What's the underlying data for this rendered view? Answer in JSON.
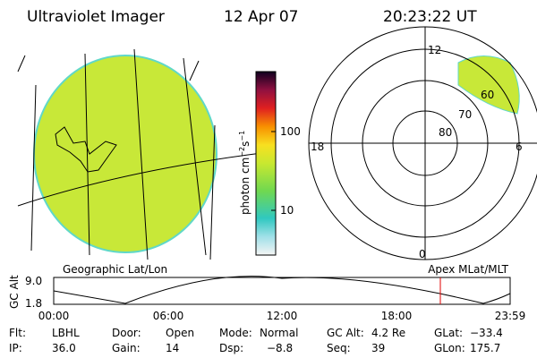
{
  "header": {
    "title": "Ultraviolet Imager",
    "date": "12 Apr 07",
    "time": "20:23:22 UT"
  },
  "colorbar": {
    "label": [
      "photon cm",
      "−2",
      "s",
      "−1"
    ],
    "ticks": [
      "100",
      "10"
    ]
  },
  "polar": {
    "mlt_labels": [
      "12",
      "18",
      "6",
      "0"
    ],
    "lat_labels": [
      "80",
      "70",
      "60"
    ]
  },
  "timeline": {
    "left_title": "Geographic Lat/Lon",
    "right_title": "Apex MLat/MLT",
    "axis_label": "GC Alt",
    "y_labels": [
      "9.0",
      "1.8"
    ],
    "x_labels": [
      "00:00",
      "06:00",
      "12:00",
      "18:00",
      "23:59"
    ]
  },
  "info": [
    [
      "Flt:",
      "LBHL"
    ],
    [
      "Door:",
      "Open"
    ],
    [
      "Mode:",
      "Normal"
    ],
    [
      "GC Alt:",
      "4.2 Re"
    ],
    [
      "GLat:",
      "−33.4"
    ],
    [
      "IP:",
      "36.0"
    ],
    [
      "Gain:",
      "14"
    ],
    [
      "Dsp:",
      "−8.8"
    ],
    [
      "Seq:",
      "39"
    ],
    [
      "GLon:",
      "175.7"
    ]
  ]
}
